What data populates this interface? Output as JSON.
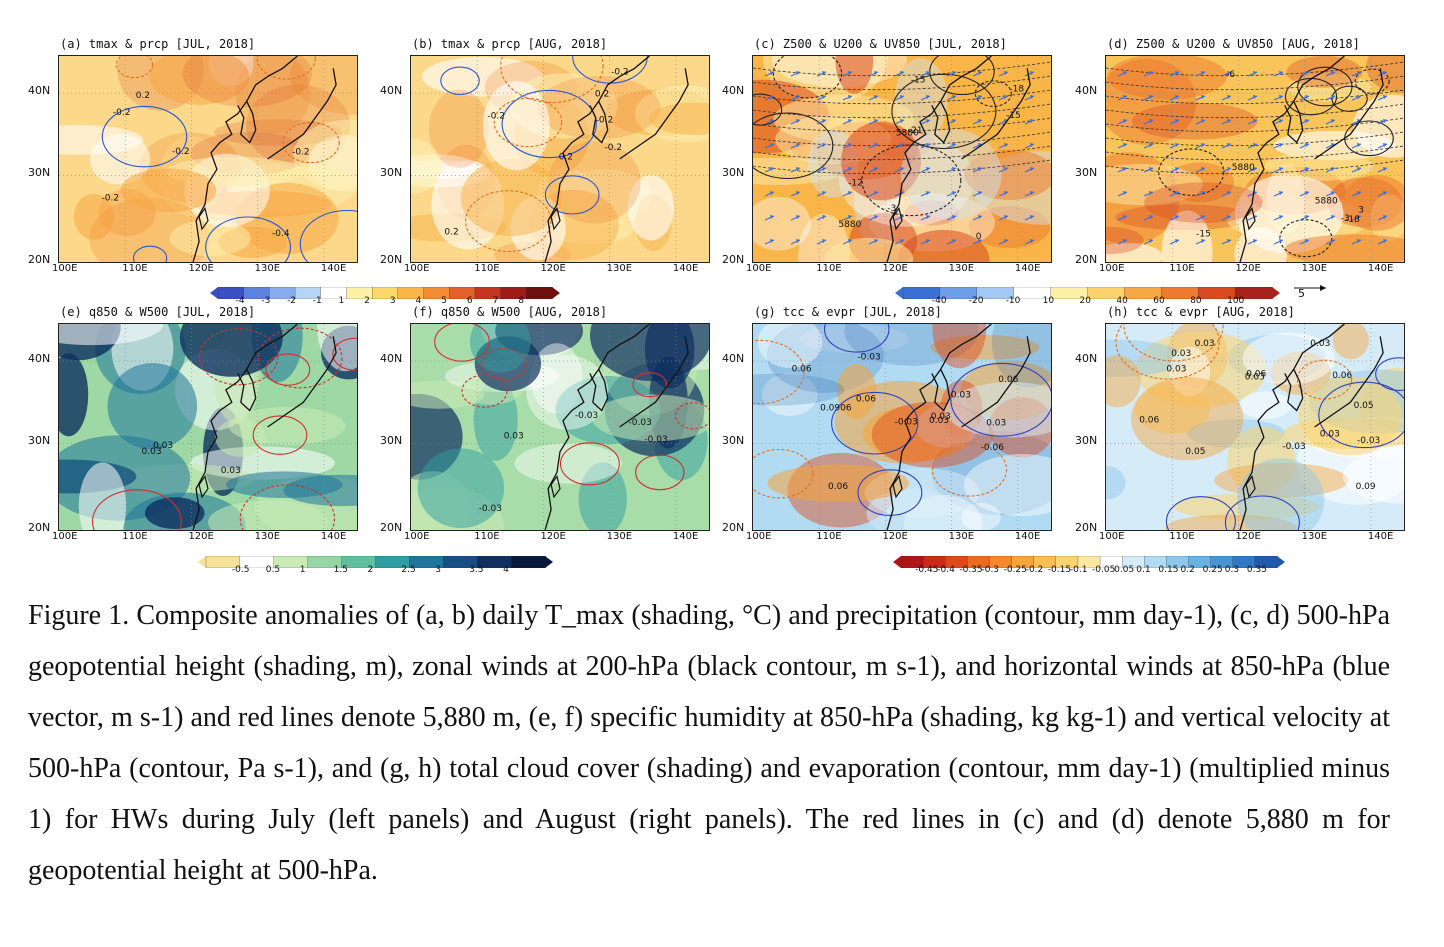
{
  "panels": [
    {
      "id": "a",
      "title": "(a) tmax & prcp [JUL, 2018]",
      "theme": "warm",
      "contours": [
        "0.2",
        "-0.2",
        "-0.2",
        "-0.4",
        "-0.2",
        "-0.2"
      ]
    },
    {
      "id": "b",
      "title": "(b) tmax & prcp [AUG, 2018]",
      "theme": "warm2",
      "contours": [
        "-0.2",
        "-0.2",
        "-0.2",
        "0.2",
        "0.2",
        "-0.2",
        "0.2"
      ]
    },
    {
      "id": "c",
      "title": "(c) Z500 & U200 & UV850 [JUL, 2018]",
      "theme": "height",
      "contours": [
        "5880",
        "-15",
        "-18",
        "-21",
        "-15",
        "-12",
        "5880",
        "-3",
        "0"
      ]
    },
    {
      "id": "d",
      "title": "(d) Z500 & U200 & UV850 [AUG, 2018]",
      "theme": "height2",
      "contours": [
        "5880",
        "-18",
        "-15",
        "5880",
        "-6",
        "-3",
        "3"
      ]
    },
    {
      "id": "e",
      "title": "(e) q850 & W500 [JUL, 2018]",
      "theme": "humid",
      "contours": [
        "0.03",
        "0.03",
        "0.03"
      ]
    },
    {
      "id": "f",
      "title": "(f) q850 & W500 [AUG, 2018]",
      "theme": "humid2",
      "contours": [
        "-0.03",
        "-0.03",
        "-0.03",
        "-0.03",
        "0.03"
      ]
    },
    {
      "id": "g",
      "title": "(g) tcc & evpr [JUL, 2018]",
      "theme": "cloud",
      "contours": [
        "0.06",
        "0.06",
        "0.0906",
        "0.06",
        "0.03",
        "0.03",
        "-0.03",
        "-0.06",
        "0.03",
        "-0.03",
        "0.03",
        "0.06"
      ]
    },
    {
      "id": "h",
      "title": "(h) tcc & evpr [AUG, 2018]",
      "theme": "cloud2",
      "contours": [
        "0.06",
        "0.03",
        "0.03",
        "0.05",
        "0.03",
        "0.05",
        "0.03",
        "-0.03",
        "-0.03",
        "0.03",
        "0.09",
        "0.06",
        "0.03",
        "0.06"
      ]
    }
  ],
  "lat_labels": [
    "40N",
    "30N",
    "20N"
  ],
  "lon_labels": [
    "100E",
    "110E",
    "120E",
    "130E",
    "140E"
  ],
  "colorbars": {
    "tmax": {
      "ticks": [
        "-4",
        "-3",
        "-2",
        "-1",
        "1",
        "2",
        "3",
        "4",
        "5",
        "6",
        "7",
        "8"
      ],
      "colors": [
        "#3a4fc4",
        "#5d82dd",
        "#86acee",
        "#b7d3f5",
        "#ffffff",
        "#fdf1a8",
        "#fcd86c",
        "#f9b548",
        "#f48c33",
        "#e4602a",
        "#c63520",
        "#9c1d17",
        "#6e0e0e"
      ]
    },
    "z500": {
      "ticks": [
        "-40",
        "-20",
        "-10",
        "10",
        "20",
        "40",
        "60",
        "80",
        "100"
      ],
      "colors": [
        "#3a6fd4",
        "#6d9ee8",
        "#a3c8f4",
        "#ffffff",
        "#fdf0a6",
        "#fbd36a",
        "#f7a845",
        "#ed7a2e",
        "#d8491f",
        "#a8211a"
      ]
    },
    "vector_ref": "5",
    "q850": {
      "ticks": [
        "-0.5",
        "0.5",
        "1",
        "1.5",
        "2",
        "2.5",
        "3",
        "3.5",
        "4"
      ],
      "colors": [
        "#f5e19a",
        "#ffffff",
        "#c9eab5",
        "#96d6a4",
        "#5fbf9e",
        "#2f9ea2",
        "#1f759b",
        "#174f82",
        "#0e2f5f",
        "#071a3c"
      ]
    },
    "tcc": {
      "ticks": [
        "-0.45",
        "-0.4",
        "-0.35",
        "-0.3",
        "-0.25",
        "-0.2",
        "-0.15",
        "-0.1",
        "-0.05",
        "0.05",
        "0.1",
        "0.15",
        "0.2",
        "0.25",
        "0.3",
        "0.35"
      ],
      "colors": [
        "#b01515",
        "#cc2a17",
        "#e04818",
        "#ee6a1f",
        "#f4882a",
        "#f7a43a",
        "#f9bd52",
        "#fbd46f",
        "#fce7a0",
        "#ffffff",
        "#d5ecf8",
        "#b0dbf3",
        "#8cc7ec",
        "#67b1e3",
        "#4895d6",
        "#2f78c4",
        "#1f5aab"
      ]
    }
  },
  "caption": "Figure 1. Composite anomalies of (a, b) daily T_max (shading, °C) and precipitation (contour, mm day-1), (c, d) 500-hPa geopotential height (shading, m), zonal winds at 200-hPa (black contour, m s-1), and horizontal winds at 850-hPa (blue vector, m s-1) and red lines denote 5,880 m, (e, f) specific humidity at 850-hPa (shading, kg kg-1) and vertical velocity at 500-hPa (contour, Pa s-1), and (g, h) total cloud cover (shading) and evaporation (contour, mm day-1) (multiplied minus 1) for HWs during July (left panels) and August (right panels). The red lines in (c) and (d) denote 5,880 m for geopotential height at 500-hPa."
}
